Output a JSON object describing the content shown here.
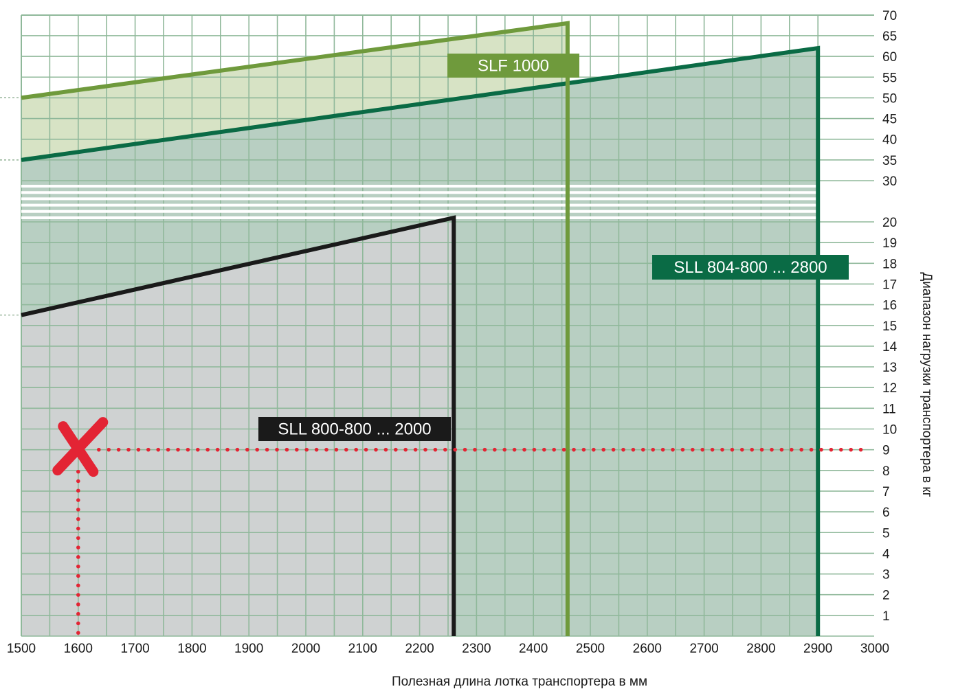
{
  "colors": {
    "slf": "#6f9a3c",
    "sll804": "#0a6b45",
    "sll800": "#1a1a1a",
    "gridline": "#8fb89a",
    "plot_bg": "#ffffff",
    "marker": "#e32434"
  },
  "chart_data": {
    "type": "line",
    "title": "",
    "xlabel": "Полезная длина лотка транспортера в мм",
    "ylabel": "Диапазон нагрузки транспортера в кг",
    "xlim": [
      1500,
      3000
    ],
    "x_ticks": [
      "1500",
      "1600",
      "1700",
      "1800",
      "1900",
      "2000",
      "2100",
      "2200",
      "2300",
      "2400",
      "2500",
      "2600",
      "2700",
      "2800",
      "2900",
      "3000"
    ],
    "y_scale": "broken",
    "y_break": [
      20,
      30
    ],
    "y_ticks": [
      "1",
      "2",
      "3",
      "4",
      "5",
      "6",
      "7",
      "8",
      "9",
      "10",
      "11",
      "12",
      "13",
      "14",
      "15",
      "16",
      "17",
      "18",
      "19",
      "20",
      "30",
      "35",
      "40",
      "45",
      "50",
      "55",
      "60",
      "65",
      "70"
    ],
    "grid": true,
    "series": [
      {
        "key": "slf",
        "name": "SLF 1000",
        "x": [
          1500,
          2460
        ],
        "y": [
          50,
          68
        ]
      },
      {
        "key": "sll804",
        "name": "SLL 804-800 ... 2800",
        "x": [
          1500,
          2900
        ],
        "y": [
          35,
          62
        ]
      },
      {
        "key": "sll800",
        "name": "SLL 800-800 ... 2000",
        "x": [
          1500,
          2260
        ],
        "y": [
          15.5,
          21
        ]
      }
    ],
    "annotation": {
      "x": 1600,
      "y": 9,
      "marker": "x"
    }
  }
}
